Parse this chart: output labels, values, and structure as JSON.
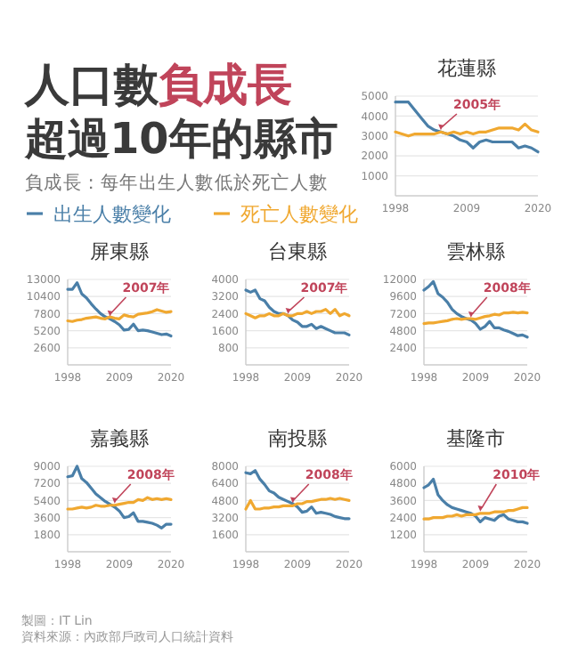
{
  "chart_data": [
    {
      "type": "other",
      "title": "人口數負成長超過10年的縣市",
      "subtitle": "負成長：每年出生人數低於死亡人數",
      "annotations": [
        "製圖：IT Lin",
        "資料來源：內政部戶政司人口統計資料"
      ]
    },
    {
      "type": "line",
      "title": "花蓮縣",
      "x": [
        1998,
        1999,
        2000,
        2001,
        2002,
        2003,
        2004,
        2005,
        2006,
        2007,
        2008,
        2009,
        2010,
        2011,
        2012,
        2013,
        2014,
        2015,
        2016,
        2017,
        2018,
        2019,
        2020
      ],
      "xlim": [
        1998,
        2020
      ],
      "xticks": [
        1998,
        2009,
        2020
      ],
      "ylim": [
        0,
        5000
      ],
      "yticks": [
        1000,
        2000,
        3000,
        4000,
        5000
      ],
      "grid": "y",
      "legend": "bottom left",
      "annotations": [
        {
          "text": "2005年",
          "x": 2005,
          "y": 3200
        }
      ],
      "series": [
        {
          "name": "出生人數變化",
          "color": "#4a7fa8",
          "values": [
            4700,
            4700,
            4700,
            4300,
            3900,
            3500,
            3300,
            3200,
            3100,
            3000,
            2800,
            2700,
            2400,
            2700,
            2800,
            2700,
            2700,
            2700,
            2700,
            2400,
            2500,
            2400,
            2200
          ]
        },
        {
          "name": "死亡人數變化",
          "color": "#f0a830",
          "values": [
            3200,
            3100,
            3000,
            3100,
            3100,
            3100,
            3100,
            3200,
            3100,
            3200,
            3100,
            3200,
            3100,
            3200,
            3200,
            3300,
            3400,
            3400,
            3400,
            3300,
            3600,
            3300,
            3200
          ]
        }
      ]
    },
    {
      "type": "line",
      "title": "屏東縣",
      "x": [
        1998,
        1999,
        2000,
        2001,
        2002,
        2003,
        2004,
        2005,
        2006,
        2007,
        2008,
        2009,
        2010,
        2011,
        2012,
        2013,
        2014,
        2015,
        2016,
        2017,
        2018,
        2019,
        2020
      ],
      "xlim": [
        1998,
        2020
      ],
      "xticks": [
        1998,
        2009,
        2020
      ],
      "ylim": [
        0,
        13000
      ],
      "yticks": [
        2600,
        5200,
        7800,
        10400,
        13000
      ],
      "grid": "y",
      "annotations": [
        {
          "text": "2007年",
          "x": 2007,
          "y": 7100
        }
      ],
      "series": [
        {
          "color": "#4a7fa8",
          "values": [
            11500,
            11500,
            12500,
            10800,
            10200,
            9300,
            8500,
            7800,
            7300,
            7000,
            6600,
            6100,
            5300,
            5400,
            6200,
            5200,
            5300,
            5200,
            5000,
            4800,
            4600,
            4700,
            4400
          ]
        },
        {
          "color": "#f0a830",
          "values": [
            6700,
            6600,
            6800,
            6900,
            7100,
            7200,
            7300,
            7100,
            7000,
            7300,
            7100,
            7000,
            7600,
            7400,
            7300,
            7700,
            7800,
            7900,
            8100,
            8400,
            8200,
            8000,
            8100
          ]
        }
      ]
    },
    {
      "type": "line",
      "title": "台東縣",
      "x": [
        1998,
        1999,
        2000,
        2001,
        2002,
        2003,
        2004,
        2005,
        2006,
        2007,
        2008,
        2009,
        2010,
        2011,
        2012,
        2013,
        2014,
        2015,
        2016,
        2017,
        2018,
        2019,
        2020
      ],
      "xlim": [
        1998,
        2020
      ],
      "xticks": [
        1998,
        2009,
        2020
      ],
      "ylim": [
        0,
        4000
      ],
      "yticks": [
        800,
        1600,
        2400,
        3200,
        4000
      ],
      "grid": "y",
      "annotations": [
        {
          "text": "2007年",
          "x": 2007,
          "y": 2300
        }
      ],
      "series": [
        {
          "color": "#4a7fa8",
          "values": [
            3500,
            3400,
            3500,
            3100,
            3000,
            2700,
            2500,
            2400,
            2400,
            2300,
            2100,
            2000,
            1800,
            1800,
            1900,
            1700,
            1800,
            1700,
            1600,
            1500,
            1500,
            1500,
            1400
          ]
        },
        {
          "color": "#f0a830",
          "values": [
            2400,
            2300,
            2200,
            2300,
            2300,
            2400,
            2300,
            2300,
            2400,
            2300,
            2300,
            2400,
            2400,
            2500,
            2400,
            2500,
            2500,
            2600,
            2400,
            2600,
            2300,
            2400,
            2300
          ]
        }
      ]
    },
    {
      "type": "line",
      "title": "雲林縣",
      "x": [
        1998,
        1999,
        2000,
        2001,
        2002,
        2003,
        2004,
        2005,
        2006,
        2007,
        2008,
        2009,
        2010,
        2011,
        2012,
        2013,
        2014,
        2015,
        2016,
        2017,
        2018,
        2019,
        2020
      ],
      "xlim": [
        1998,
        2020
      ],
      "xticks": [
        1998,
        2009,
        2020
      ],
      "ylim": [
        0,
        12000
      ],
      "yticks": [
        2400,
        4800,
        7200,
        9600,
        12000
      ],
      "grid": "y",
      "annotations": [
        {
          "text": "2008年",
          "x": 2008,
          "y": 6400
        }
      ],
      "series": [
        {
          "color": "#4a7fa8",
          "values": [
            10500,
            11000,
            11700,
            10000,
            9500,
            8800,
            7800,
            7200,
            6800,
            6500,
            6300,
            5800,
            5000,
            5400,
            6100,
            5200,
            5200,
            4900,
            4700,
            4400,
            4100,
            4200,
            3900
          ]
        },
        {
          "color": "#f0a830",
          "values": [
            5800,
            5900,
            5900,
            6000,
            6100,
            6200,
            6400,
            6500,
            6400,
            6500,
            6500,
            6400,
            6600,
            6800,
            6900,
            7100,
            7000,
            7300,
            7300,
            7400,
            7300,
            7400,
            7300
          ]
        }
      ]
    },
    {
      "type": "line",
      "title": "嘉義縣",
      "x": [
        1998,
        1999,
        2000,
        2001,
        2002,
        2003,
        2004,
        2005,
        2006,
        2007,
        2008,
        2009,
        2010,
        2011,
        2012,
        2013,
        2014,
        2015,
        2016,
        2017,
        2018,
        2019,
        2020
      ],
      "xlim": [
        1998,
        2020
      ],
      "xticks": [
        1998,
        2009,
        2020
      ],
      "ylim": [
        0,
        9000
      ],
      "yticks": [
        1800,
        3600,
        5400,
        7200,
        9000
      ],
      "grid": "y",
      "annotations": [
        {
          "text": "2008年",
          "x": 2008,
          "y": 4900
        }
      ],
      "series": [
        {
          "color": "#4a7fa8",
          "values": [
            7900,
            8000,
            9000,
            7700,
            7300,
            6700,
            6100,
            5700,
            5300,
            5000,
            4700,
            4300,
            3600,
            3700,
            4100,
            3200,
            3200,
            3100,
            3000,
            2800,
            2500,
            2900,
            2900
          ]
        },
        {
          "color": "#f0a830",
          "values": [
            4500,
            4500,
            4600,
            4700,
            4600,
            4700,
            4900,
            4800,
            4800,
            4900,
            4900,
            5000,
            5100,
            5200,
            5200,
            5500,
            5400,
            5700,
            5500,
            5600,
            5500,
            5600,
            5500
          ]
        }
      ]
    },
    {
      "type": "line",
      "title": "南投縣",
      "x": [
        1998,
        1999,
        2000,
        2001,
        2002,
        2003,
        2004,
        2005,
        2006,
        2007,
        2008,
        2009,
        2010,
        2011,
        2012,
        2013,
        2014,
        2015,
        2016,
        2017,
        2018,
        2019,
        2020
      ],
      "xlim": [
        1998,
        2020
      ],
      "xticks": [
        1998,
        2009,
        2020
      ],
      "ylim": [
        0,
        8000
      ],
      "yticks": [
        1600,
        3200,
        4800,
        6400,
        8000
      ],
      "grid": "y",
      "annotations": [
        {
          "text": "2008年",
          "x": 2008,
          "y": 4400
        }
      ],
      "series": [
        {
          "color": "#4a7fa8",
          "values": [
            7400,
            7300,
            7600,
            6800,
            6300,
            5700,
            5500,
            5100,
            4900,
            4700,
            4500,
            4200,
            3700,
            3800,
            4200,
            3600,
            3700,
            3600,
            3500,
            3300,
            3200,
            3100,
            3100
          ]
        },
        {
          "color": "#f0a830",
          "values": [
            4000,
            4800,
            4000,
            4000,
            4100,
            4100,
            4200,
            4200,
            4300,
            4300,
            4300,
            4500,
            4500,
            4700,
            4700,
            4800,
            4900,
            4900,
            5000,
            4900,
            5000,
            4900,
            4800
          ]
        }
      ]
    },
    {
      "type": "line",
      "title": "基隆市",
      "x": [
        1998,
        1999,
        2000,
        2001,
        2002,
        2003,
        2004,
        2005,
        2006,
        2007,
        2008,
        2009,
        2010,
        2011,
        2012,
        2013,
        2014,
        2015,
        2016,
        2017,
        2018,
        2019,
        2020
      ],
      "xlim": [
        1998,
        2020
      ],
      "xticks": [
        1998,
        2009,
        2020
      ],
      "ylim": [
        0,
        6000
      ],
      "yticks": [
        1200,
        2400,
        3600,
        4800,
        6000
      ],
      "grid": "y",
      "annotations": [
        {
          "text": "2010年",
          "x": 2010,
          "y": 2700
        }
      ],
      "series": [
        {
          "color": "#4a7fa8",
          "values": [
            4500,
            4700,
            5100,
            4000,
            3600,
            3300,
            3100,
            3000,
            2900,
            2800,
            2700,
            2500,
            2100,
            2400,
            2300,
            2200,
            2500,
            2600,
            2300,
            2200,
            2100,
            2100,
            2000
          ]
        },
        {
          "color": "#f0a830",
          "values": [
            2300,
            2300,
            2400,
            2400,
            2400,
            2500,
            2500,
            2600,
            2500,
            2600,
            2600,
            2600,
            2700,
            2700,
            2700,
            2800,
            2800,
            2800,
            2900,
            2900,
            3000,
            3100,
            3100
          ]
        }
      ]
    }
  ]
}
